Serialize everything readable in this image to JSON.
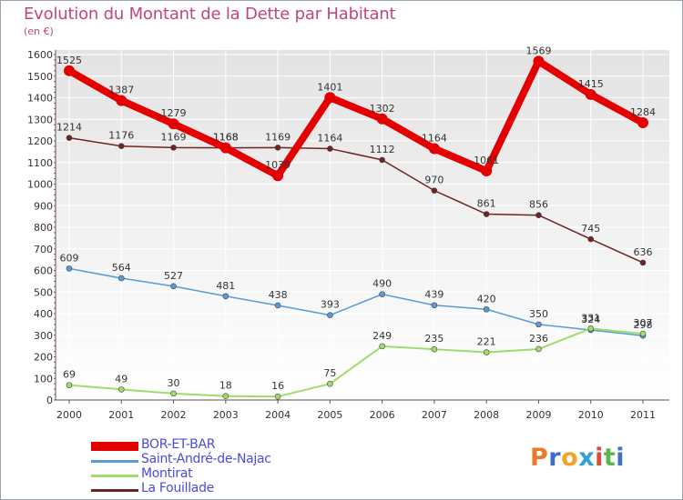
{
  "title": "Evolution du Montant de la Dette par Habitant",
  "subtitle": "(en €)",
  "logo_text": "Proxiti",
  "chart_data": {
    "type": "line",
    "title": "Evolution du Montant de la Dette par Habitant",
    "ylabel": "(en €)",
    "xlabel": "",
    "ylim": [
      0,
      1600
    ],
    "yticks": [
      0,
      100,
      200,
      300,
      400,
      500,
      600,
      700,
      800,
      900,
      1000,
      1100,
      1200,
      1300,
      1400,
      1500,
      1600
    ],
    "categories": [
      "2000",
      "2001",
      "2002",
      "2003",
      "2004",
      "2005",
      "2006",
      "2007",
      "2008",
      "2009",
      "2010",
      "2011"
    ],
    "grid": true,
    "legend_position": "bottom-left",
    "series": [
      {
        "name": "BOR-ET-BAR",
        "color": "#e40000",
        "values": [
          1525,
          1387,
          1279,
          1168,
          1039,
          1401,
          1302,
          1164,
          1061,
          1569,
          1415,
          1284
        ]
      },
      {
        "name": "Saint-André-de-Najac",
        "color": "#5b9bd5",
        "values": [
          609,
          564,
          527,
          481,
          438,
          393,
          490,
          439,
          420,
          350,
          324,
          298
        ]
      },
      {
        "name": "Montirat",
        "color": "#9fdc6c",
        "values": [
          69,
          49,
          30,
          18,
          16,
          75,
          249,
          235,
          221,
          236,
          331,
          307
        ]
      },
      {
        "name": "La Fouillade",
        "color": "#6e2424",
        "values": [
          1214,
          1176,
          1169,
          1168,
          1169,
          1164,
          1112,
          970,
          861,
          856,
          745,
          636
        ]
      }
    ]
  }
}
